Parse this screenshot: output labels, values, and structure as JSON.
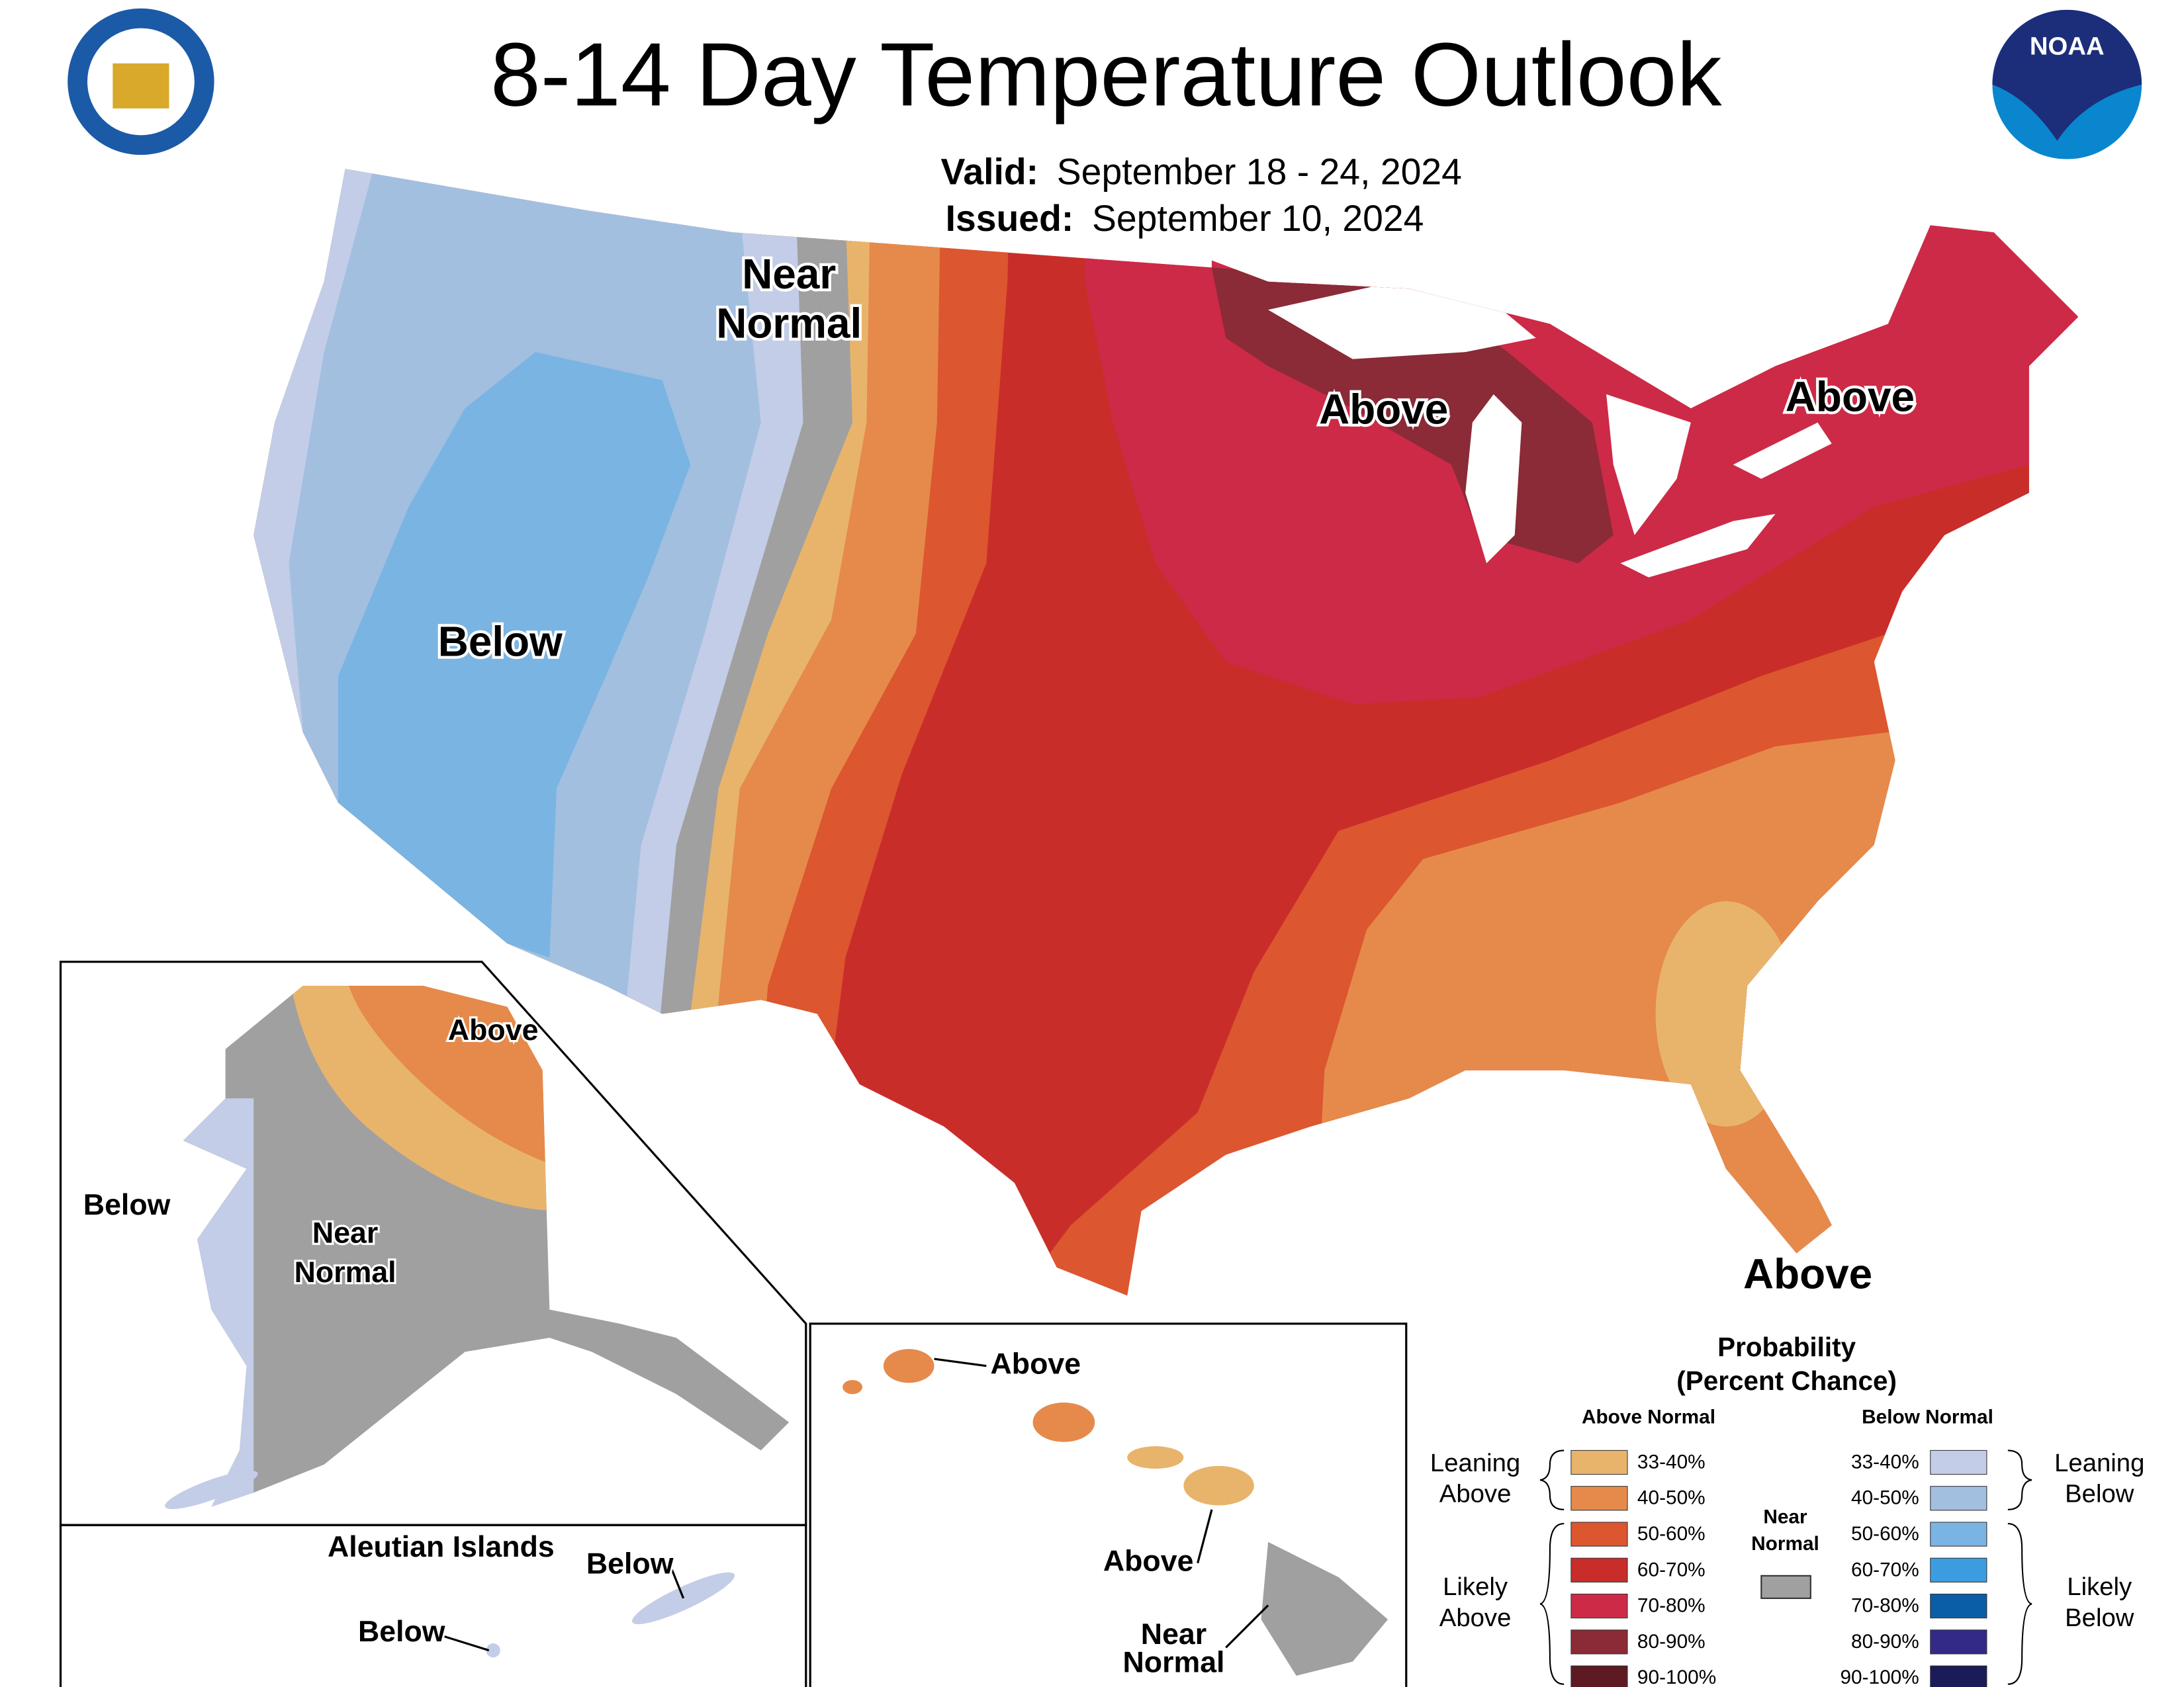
{
  "title": "8-14 Day Temperature Outlook",
  "valid": {
    "label": "Valid:",
    "value": "September 18 - 24, 2024"
  },
  "issued": {
    "label": "Issued:",
    "value": "September 10, 2024"
  },
  "map_labels": [
    {
      "lines": [
        "Near",
        "Normal"
      ]
    },
    {
      "lines": [
        "Above"
      ]
    },
    {
      "lines": [
        "Above"
      ]
    },
    {
      "lines": [
        "Below"
      ]
    },
    {
      "lines": [
        "Above"
      ]
    }
  ],
  "alaska_labels": [
    {
      "lines": [
        "Above"
      ]
    },
    {
      "lines": [
        "Below"
      ]
    },
    {
      "lines": [
        "Near",
        "Normal"
      ]
    }
  ],
  "aleutian": {
    "title": "Aleutian Islands",
    "labels": [
      "Below",
      "Below"
    ]
  },
  "hawaii_labels": [
    {
      "lines": [
        "Above"
      ]
    },
    {
      "lines": [
        "Above"
      ]
    },
    {
      "lines": [
        "Near",
        "Normal"
      ]
    }
  ],
  "legend": {
    "title": [
      "Probability",
      "(Percent Chance)"
    ],
    "above_header": "Above Normal",
    "below_header": "Below Normal",
    "near": {
      "lines": [
        "Near",
        "Normal"
      ],
      "color": "#a0a0a0"
    },
    "above": [
      {
        "label": "33-40%",
        "color": "#e8b46c"
      },
      {
        "label": "40-50%",
        "color": "#e58a4b"
      },
      {
        "label": "50-60%",
        "color": "#dc562f"
      },
      {
        "label": "60-70%",
        "color": "#c92d2a"
      },
      {
        "label": "70-80%",
        "color": "#cc2a47"
      },
      {
        "label": "80-90%",
        "color": "#8a2b37"
      },
      {
        "label": "90-100%",
        "color": "#5e1a22"
      }
    ],
    "below": [
      {
        "label": "33-40%",
        "color": "#c3cde7"
      },
      {
        "label": "40-50%",
        "color": "#a2bfe0"
      },
      {
        "label": "50-60%",
        "color": "#7ab4e2"
      },
      {
        "label": "60-70%",
        "color": "#3b9de0"
      },
      {
        "label": "70-80%",
        "color": "#0a5ea8"
      },
      {
        "label": "80-90%",
        "color": "#332a87"
      },
      {
        "label": "90-100%",
        "color": "#1b1b5a"
      }
    ],
    "groups": {
      "leaning_above": [
        "Leaning",
        "Above"
      ],
      "likely_above": [
        "Likely",
        "Above"
      ],
      "leaning_below": [
        "Leaning",
        "Below"
      ],
      "likely_below": [
        "Likely",
        "Below"
      ]
    }
  }
}
